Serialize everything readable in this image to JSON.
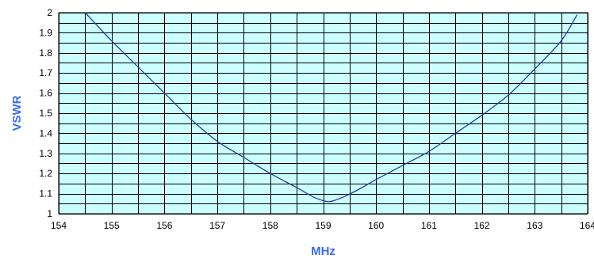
{
  "chart_data": {
    "type": "line",
    "title": "",
    "xlabel": "MHz",
    "ylabel": "VSWR",
    "xlim": [
      154,
      164
    ],
    "ylim": [
      1,
      2
    ],
    "x_ticks": [
      "154",
      "155",
      "156",
      "157",
      "158",
      "159",
      "160",
      "161",
      "162",
      "163",
      "164"
    ],
    "y_ticks": [
      "1",
      "1.1",
      "1.2",
      "1.3",
      "1.4",
      "1.5",
      "1.6",
      "1.7",
      "1.8",
      "1.9",
      "2"
    ],
    "grid": true,
    "legend": "none",
    "series": [
      {
        "x": [
          154.5,
          155.0,
          155.5,
          156.0,
          156.5,
          157.0,
          157.5,
          158.0,
          158.5,
          158.8,
          159.0,
          159.1,
          159.2,
          159.4,
          159.7,
          160.0,
          160.5,
          161.0,
          161.5,
          162.0,
          162.5,
          163.0,
          163.5,
          163.8
        ],
        "y": [
          2.0,
          1.86,
          1.73,
          1.6,
          1.47,
          1.36,
          1.28,
          1.2,
          1.13,
          1.085,
          1.065,
          1.06,
          1.065,
          1.085,
          1.125,
          1.17,
          1.24,
          1.31,
          1.4,
          1.49,
          1.59,
          1.72,
          1.86,
          1.99
        ]
      }
    ],
    "colors": {
      "plot_background": "#ccffff",
      "grid": "#000000",
      "line": "#1f3fa0",
      "axis_title": "#3b6cf0"
    }
  }
}
